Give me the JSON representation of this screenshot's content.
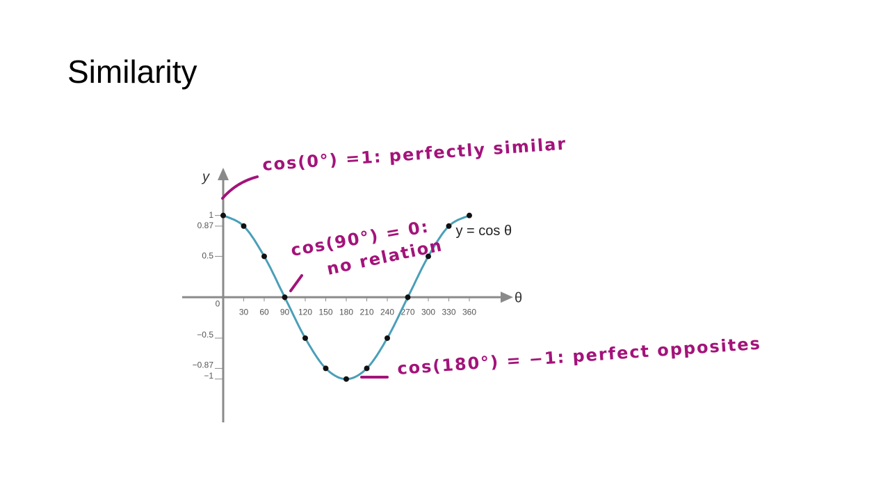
{
  "slide": {
    "title": "Similarity"
  },
  "chart_data": {
    "type": "line",
    "x_label": "θ",
    "y_label": "y",
    "x": [
      0,
      30,
      60,
      90,
      120,
      150,
      180,
      210,
      240,
      270,
      300,
      330,
      360
    ],
    "series": [
      {
        "name": "y = cos θ",
        "color": "#4a9fb8",
        "values": [
          1,
          0.87,
          0.5,
          0,
          -0.5,
          -0.87,
          -1,
          -0.87,
          -0.5,
          0,
          0.5,
          0.87,
          1
        ]
      }
    ],
    "xlim": [
      -60,
      420
    ],
    "ylim": [
      -1.53,
      1.55
    ],
    "xticks": [
      0,
      30,
      60,
      90,
      120,
      150,
      180,
      210,
      240,
      270,
      300,
      330,
      360
    ],
    "yticks": [
      {
        "value": -1,
        "label": "−1"
      },
      {
        "value": -0.87,
        "label": "−0.87"
      },
      {
        "value": -0.5,
        "label": "−0.5"
      },
      0.5,
      0.87,
      1
    ],
    "annotations": [
      "cos(0°) =1: perfectly similar",
      "cos(90°) = 0:",
      "no relation",
      "cos(180°) = −1: perfect opposites"
    ]
  }
}
